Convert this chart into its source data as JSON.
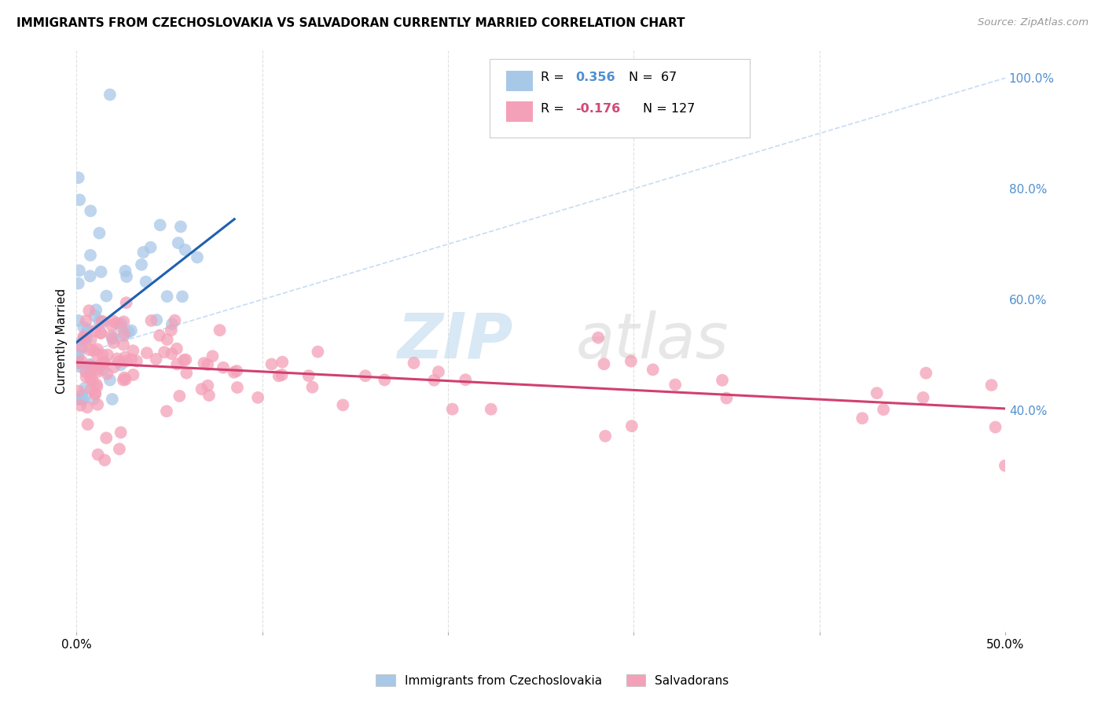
{
  "title": "IMMIGRANTS FROM CZECHOSLOVAKIA VS SALVADORAN CURRENTLY MARRIED CORRELATION CHART",
  "source": "Source: ZipAtlas.com",
  "ylabel": "Currently Married",
  "xlim": [
    0.0,
    0.5
  ],
  "ylim": [
    0.0,
    1.05
  ],
  "blue_color": "#a8c8e8",
  "pink_color": "#f4a0b8",
  "line_blue": "#2060b0",
  "line_pink": "#d04070",
  "diag_color": "#b8d4f0",
  "watermark_zip": "ZIP",
  "watermark_atlas": "atlas",
  "background": "#ffffff",
  "grid_color": "#e0e0e0",
  "grid_style": "--",
  "right_tick_color": "#5090d0",
  "yticks_right": [
    0.4,
    0.6,
    0.8,
    1.0
  ],
  "ytick_labels_right": [
    "40.0%",
    "60.0%",
    "80.0%",
    "100.0%"
  ]
}
